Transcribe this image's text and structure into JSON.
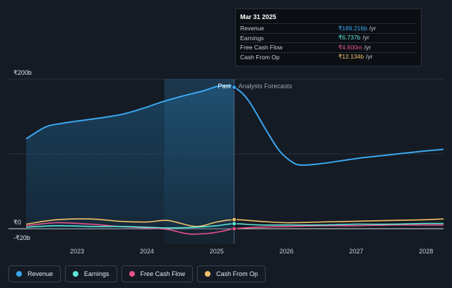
{
  "tooltip": {
    "date": "Mar 31 2025",
    "rows": [
      {
        "name": "Revenue",
        "value": "₹189.216b",
        "unit": "/yr",
        "color": "#3aa7f0"
      },
      {
        "name": "Earnings",
        "value": "₹6.737b",
        "unit": "/yr",
        "color": "#5ee6d8"
      },
      {
        "name": "Free Cash Flow",
        "value": "₹4.600m",
        "unit": "/yr",
        "color": "#e8528a"
      },
      {
        "name": "Cash From Op",
        "value": "₹12.134b",
        "unit": "/yr",
        "color": "#f5c26b"
      }
    ]
  },
  "annotations": {
    "past": "Past",
    "forecast": "Analysts Forecasts"
  },
  "legend": [
    {
      "label": "Revenue",
      "color": "#3aa7f0"
    },
    {
      "label": "Earnings",
      "color": "#5ee6d8"
    },
    {
      "label": "Free Cash Flow",
      "color": "#e8528a"
    },
    {
      "label": "Cash From Op",
      "color": "#f5c26b"
    }
  ],
  "chart_data": {
    "type": "line",
    "y_tick_labels": [
      "₹200b",
      "₹0",
      "-₹20b"
    ],
    "y_ticks": [
      200,
      0,
      -20
    ],
    "ylim": [
      -20,
      200
    ],
    "x_tick_labels": [
      "2023",
      "2024",
      "2025",
      "2026",
      "2027",
      "2028"
    ],
    "x_ticks": [
      2023,
      2024,
      2025,
      2026,
      2027,
      2028
    ],
    "xlim": [
      2022.27,
      2028.25
    ],
    "past_end": 2025.25,
    "highlight_start": 2024.25,
    "grid": true,
    "series": [
      {
        "name": "Revenue",
        "color": "#3aa7f0",
        "x": [
          2022.27,
          2022.55,
          2022.8,
          2023.1,
          2023.4,
          2023.65,
          2023.95,
          2024.2,
          2024.5,
          2024.8,
          2025.05,
          2025.25,
          2025.45,
          2025.7,
          2025.9,
          2026.1,
          2026.25,
          2026.5,
          2026.8,
          2027.1,
          2027.4,
          2027.7,
          2028.0,
          2028.25
        ],
        "y": [
          120,
          136,
          141,
          145,
          149,
          153,
          161,
          169,
          177,
          184,
          191,
          189,
          172,
          133,
          104,
          88,
          85,
          87,
          91,
          95,
          98,
          101,
          104,
          106
        ]
      },
      {
        "name": "Earnings",
        "color": "#5ee6d8",
        "x": [
          2022.27,
          2022.7,
          2023.2,
          2023.6,
          2024.0,
          2024.3,
          2024.7,
          2025.0,
          2025.25,
          2025.6,
          2026.0,
          2026.5,
          2027.0,
          2027.5,
          2028.0,
          2028.25
        ],
        "y": [
          2,
          4,
          3,
          3,
          2,
          1,
          2,
          4,
          6.7,
          5,
          5,
          5,
          6,
          6,
          7,
          7
        ]
      },
      {
        "name": "Free Cash Flow",
        "color": "#e8528a",
        "x": [
          2022.27,
          2022.7,
          2023.2,
          2023.6,
          2024.0,
          2024.3,
          2024.6,
          2024.9,
          2025.1,
          2025.25,
          2025.6,
          2026.0,
          2026.5,
          2027.0,
          2027.5,
          2028.0,
          2028.25
        ],
        "y": [
          4,
          8,
          6,
          3,
          1,
          -1,
          -7,
          -6,
          -3,
          0.005,
          2,
          3,
          4,
          4,
          5,
          5,
          5
        ]
      },
      {
        "name": "Cash From Op",
        "color": "#f5c26b",
        "x": [
          2022.27,
          2022.7,
          2023.2,
          2023.6,
          2024.0,
          2024.3,
          2024.7,
          2025.0,
          2025.25,
          2025.6,
          2026.0,
          2026.5,
          2027.0,
          2027.5,
          2028.0,
          2028.25
        ],
        "y": [
          6,
          12,
          13,
          10,
          9,
          11,
          3,
          9,
          12.1,
          10,
          8,
          9,
          10,
          11,
          12,
          13
        ]
      }
    ]
  }
}
